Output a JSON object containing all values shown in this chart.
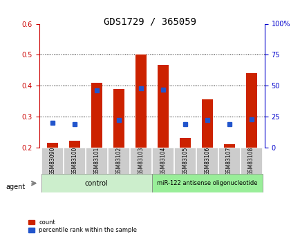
{
  "title": "GDS1729 / 365059",
  "samples": [
    "GSM83090",
    "GSM83100",
    "GSM83101",
    "GSM83102",
    "GSM83103",
    "GSM83104",
    "GSM83105",
    "GSM83106",
    "GSM83107",
    "GSM83108"
  ],
  "count_values": [
    0.215,
    0.222,
    0.41,
    0.39,
    0.5,
    0.468,
    0.23,
    0.355,
    0.21,
    0.44
  ],
  "percentile_values": [
    20.0,
    19.0,
    46.0,
    22.0,
    48.0,
    47.0,
    19.0,
    22.0,
    19.0,
    23.0
  ],
  "bar_bottom": 0.2,
  "ylim_left": [
    0.2,
    0.6
  ],
  "ylim_right": [
    0.0,
    100.0
  ],
  "yticks_left": [
    0.2,
    0.3,
    0.4,
    0.5,
    0.6
  ],
  "yticks_right": [
    0,
    25,
    50,
    75,
    100
  ],
  "ytick_labels_right": [
    "0",
    "25",
    "50",
    "75",
    "100%"
  ],
  "bar_color": "#cc2200",
  "dot_color": "#2255cc",
  "bar_width": 0.5,
  "control_samples": 5,
  "control_label": "control",
  "treatment_label": "miR-122 antisense oligonucleotide",
  "control_bg": "#cceecc",
  "treatment_bg": "#99ee99",
  "sample_bg": "#cccccc",
  "agent_label": "agent",
  "legend_count": "count",
  "legend_percentile": "percentile rank within the sample",
  "grid_color": "#000000",
  "title_color": "#000000",
  "left_tick_color": "#cc0000",
  "right_tick_color": "#0000cc"
}
